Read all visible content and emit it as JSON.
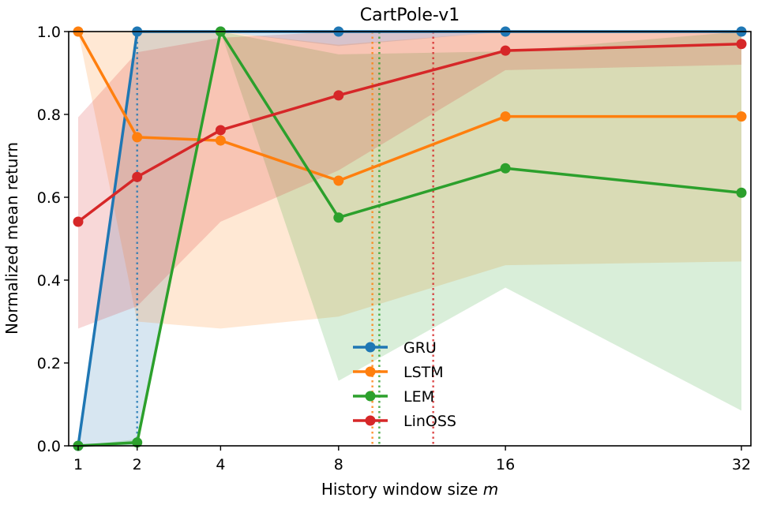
{
  "chart_data": {
    "type": "line",
    "title": "CartPole-v1",
    "xlabel_prefix": "History window size ",
    "xlabel_var": "m",
    "ylabel": "Normalized mean return",
    "x": [
      1,
      2,
      4,
      8,
      16,
      32
    ],
    "x_scale": "sqrt",
    "xlim": [
      1,
      32
    ],
    "ylim": [
      0.0,
      1.0
    ],
    "xticks": [
      1,
      2,
      4,
      8,
      16,
      32
    ],
    "yticks": [
      0.0,
      0.2,
      0.4,
      0.6,
      0.8,
      1.0
    ],
    "ytick_labels": [
      "0.0",
      "0.2",
      "0.4",
      "0.6",
      "0.8",
      "1.0"
    ],
    "grid": false,
    "legend_position": "lower-center",
    "series": [
      {
        "name": "GRU",
        "color": "#1f77b4",
        "values": [
          0.0,
          1.0,
          1.0,
          1.0,
          1.0,
          1.0
        ],
        "band_lower": [
          0.0,
          0.0,
          1.0,
          0.965,
          1.0,
          1.0
        ],
        "band_upper": [
          0.0,
          1.0,
          1.0,
          1.0,
          1.0,
          1.0
        ],
        "vline_x": 2.0
      },
      {
        "name": "LSTM",
        "color": "#ff7f0e",
        "values": [
          1.0,
          0.745,
          0.737,
          0.64,
          0.795,
          0.795
        ],
        "band_lower": [
          1.0,
          0.3,
          0.283,
          0.312,
          0.436,
          0.445
        ],
        "band_upper": [
          1.0,
          1.0,
          1.0,
          0.968,
          1.0,
          1.0
        ],
        "vline_x": 9.4
      },
      {
        "name": "LEM",
        "color": "#2ca02c",
        "values": [
          0.0,
          0.008,
          1.0,
          0.551,
          0.67,
          0.611
        ],
        "band_lower": [
          0.0,
          0.0,
          1.0,
          0.157,
          0.382,
          0.085
        ],
        "band_upper": [
          0.0,
          0.016,
          1.0,
          0.945,
          0.952,
          1.0
        ],
        "vline_x": 9.7
      },
      {
        "name": "LinOSS",
        "color": "#d62728",
        "values": [
          0.541,
          0.649,
          0.762,
          0.846,
          0.954,
          0.97
        ],
        "band_lower": [
          0.283,
          0.337,
          0.541,
          0.665,
          0.907,
          0.92
        ],
        "band_upper": [
          0.793,
          0.95,
          0.985,
          1.0,
          1.0,
          1.0
        ],
        "vline_x": 12.2
      }
    ]
  }
}
